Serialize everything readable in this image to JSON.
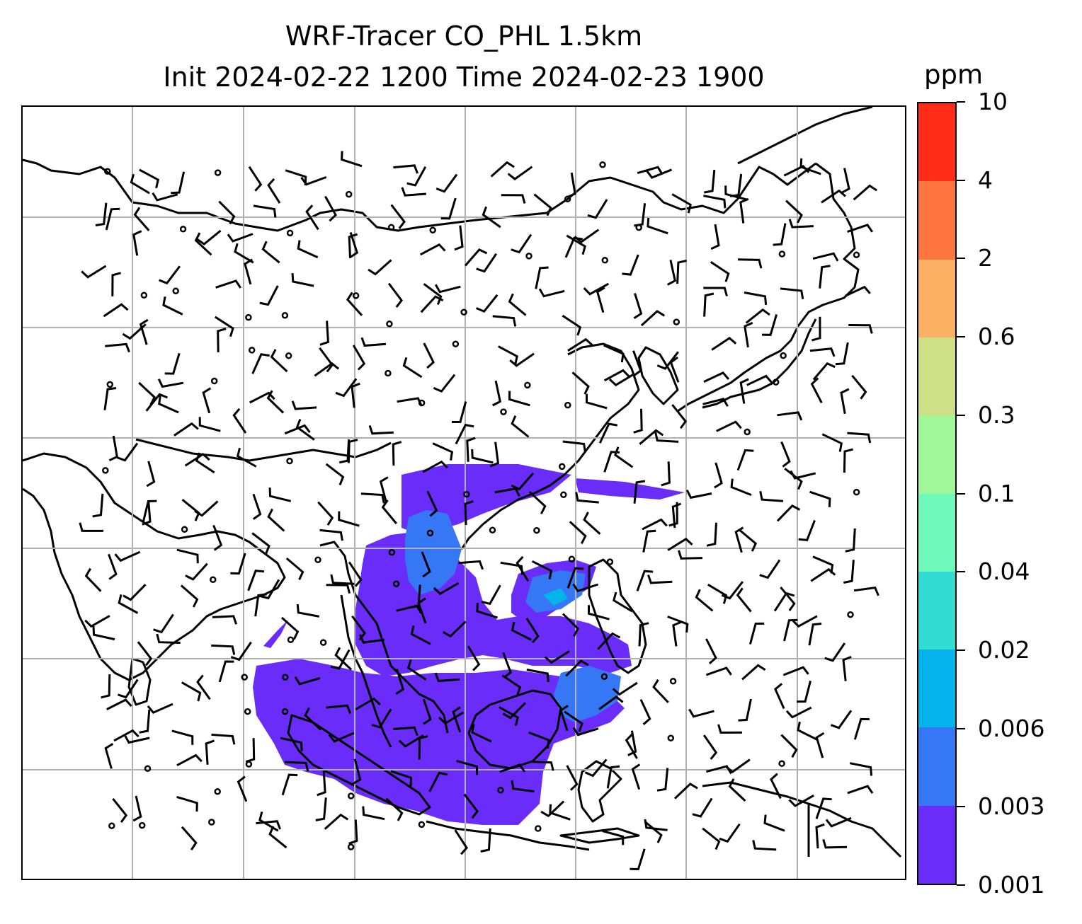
{
  "title": {
    "line1": "WRF-Tracer CO_PHL 1.5km",
    "line2": "Init 2024-02-22 1200 Time 2024-02-23 1900"
  },
  "colorbar": {
    "units": "ppm",
    "levels": [
      "0.001",
      "0.003",
      "0.006",
      "0.02",
      "0.04",
      "0.1",
      "0.3",
      "0.6",
      "2",
      "4",
      "10"
    ],
    "colors": [
      "#6a2cf8",
      "#3577f4",
      "#06b3ea",
      "#32dcd2",
      "#6ffabc",
      "#9ff79a",
      "#cde086",
      "#fbb063",
      "#ff7641",
      "#ff2c17"
    ]
  },
  "map": {
    "gridline_color": "#b0b0b0",
    "coastline_color": "#000000",
    "tracer_fill_color": "#6a2cf8",
    "tracer_core_color": "#3577f4",
    "tracer_peak_color": "#06b3ea"
  }
}
